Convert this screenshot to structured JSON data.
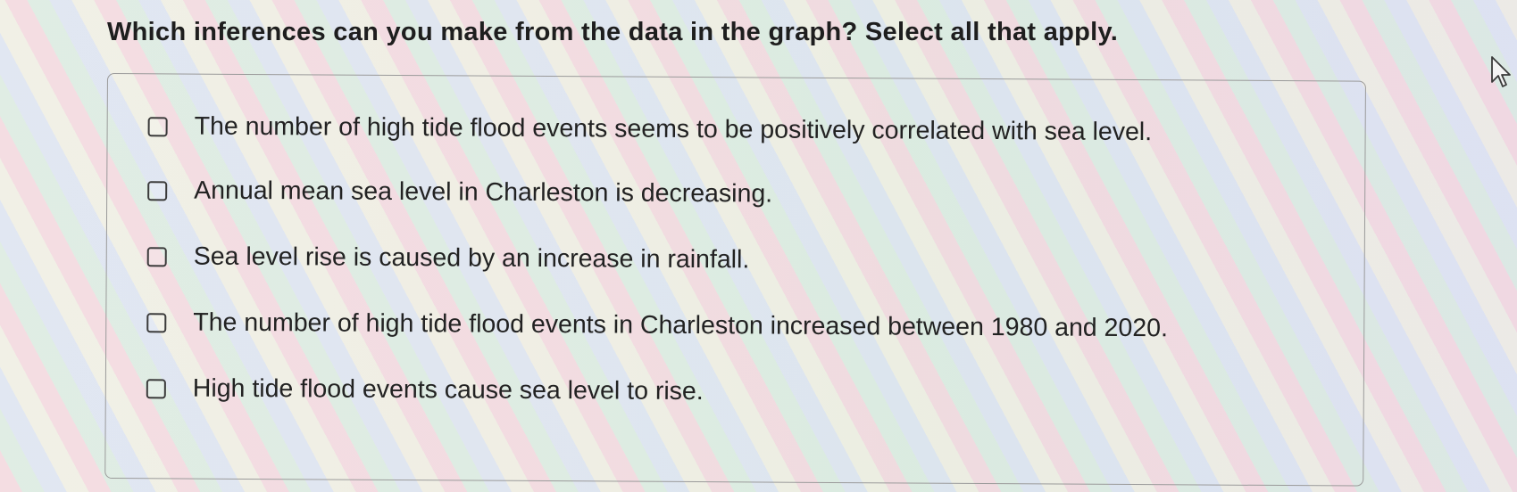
{
  "question": {
    "text": "Which inferences can you make from the data in the graph? Select all that apply."
  },
  "options": [
    {
      "label": "The number of high tide flood events seems to be positively correlated with sea level.",
      "checked": false
    },
    {
      "label": "Annual mean sea level in Charleston is decreasing.",
      "checked": false
    },
    {
      "label": "Sea level rise is caused by an increase in rainfall.",
      "checked": false
    },
    {
      "label": "The number of high tide flood events in Charleston increased between 1980 and 2020.",
      "checked": false
    },
    {
      "label": "High tide flood events cause sea level to rise.",
      "checked": false
    }
  ],
  "icons": {
    "cursor": "mouse-pointer-icon",
    "checkbox": "checkbox-unchecked-icon"
  }
}
